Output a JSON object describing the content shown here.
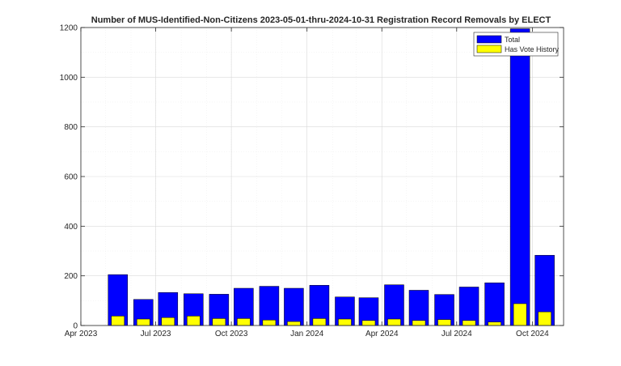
{
  "chart_data": {
    "type": "bar",
    "title": "Number of MUS-Identified-Non-Citizens 2023-05-01-thru-2024-10-31 Registration Record Removals by ELECT",
    "xlabel": "",
    "ylabel": "",
    "ylim": [
      0,
      1200
    ],
    "yticks": [
      0,
      200,
      400,
      600,
      800,
      1000,
      1200
    ],
    "xlim": [
      "2023-04-01",
      "2024-11-08"
    ],
    "xticks": [
      {
        "date": "2023-04-01",
        "label": "Apr 2023"
      },
      {
        "date": "2023-07-01",
        "label": "Jul 2023"
      },
      {
        "date": "2023-10-01",
        "label": "Oct 2023"
      },
      {
        "date": "2024-01-01",
        "label": "Jan 2024"
      },
      {
        "date": "2024-04-01",
        "label": "Apr 2024"
      },
      {
        "date": "2024-07-01",
        "label": "Jul 2024"
      },
      {
        "date": "2024-10-01",
        "label": "Oct 2024"
      }
    ],
    "grid": true,
    "legend_position": "top-right",
    "x": [
      "2023-05-01",
      "2023-06-01",
      "2023-07-01",
      "2023-08-01",
      "2023-09-01",
      "2023-10-01",
      "2023-11-01",
      "2023-12-01",
      "2024-01-01",
      "2024-02-01",
      "2024-03-01",
      "2024-04-01",
      "2024-05-01",
      "2024-06-01",
      "2024-07-01",
      "2024-08-01",
      "2024-09-01",
      "2024-10-01"
    ],
    "series": [
      {
        "name": "Total",
        "color": "#0000ff",
        "values": [
          205,
          105,
          133,
          128,
          126,
          150,
          158,
          150,
          162,
          115,
          112,
          164,
          142,
          125,
          155,
          172,
          1195,
          283
        ]
      },
      {
        "name": "Has Vote History",
        "color": "#ffff00",
        "values": [
          38,
          26,
          32,
          38,
          28,
          28,
          22,
          16,
          28,
          26,
          20,
          26,
          20,
          24,
          20,
          14,
          88,
          55
        ]
      }
    ]
  }
}
